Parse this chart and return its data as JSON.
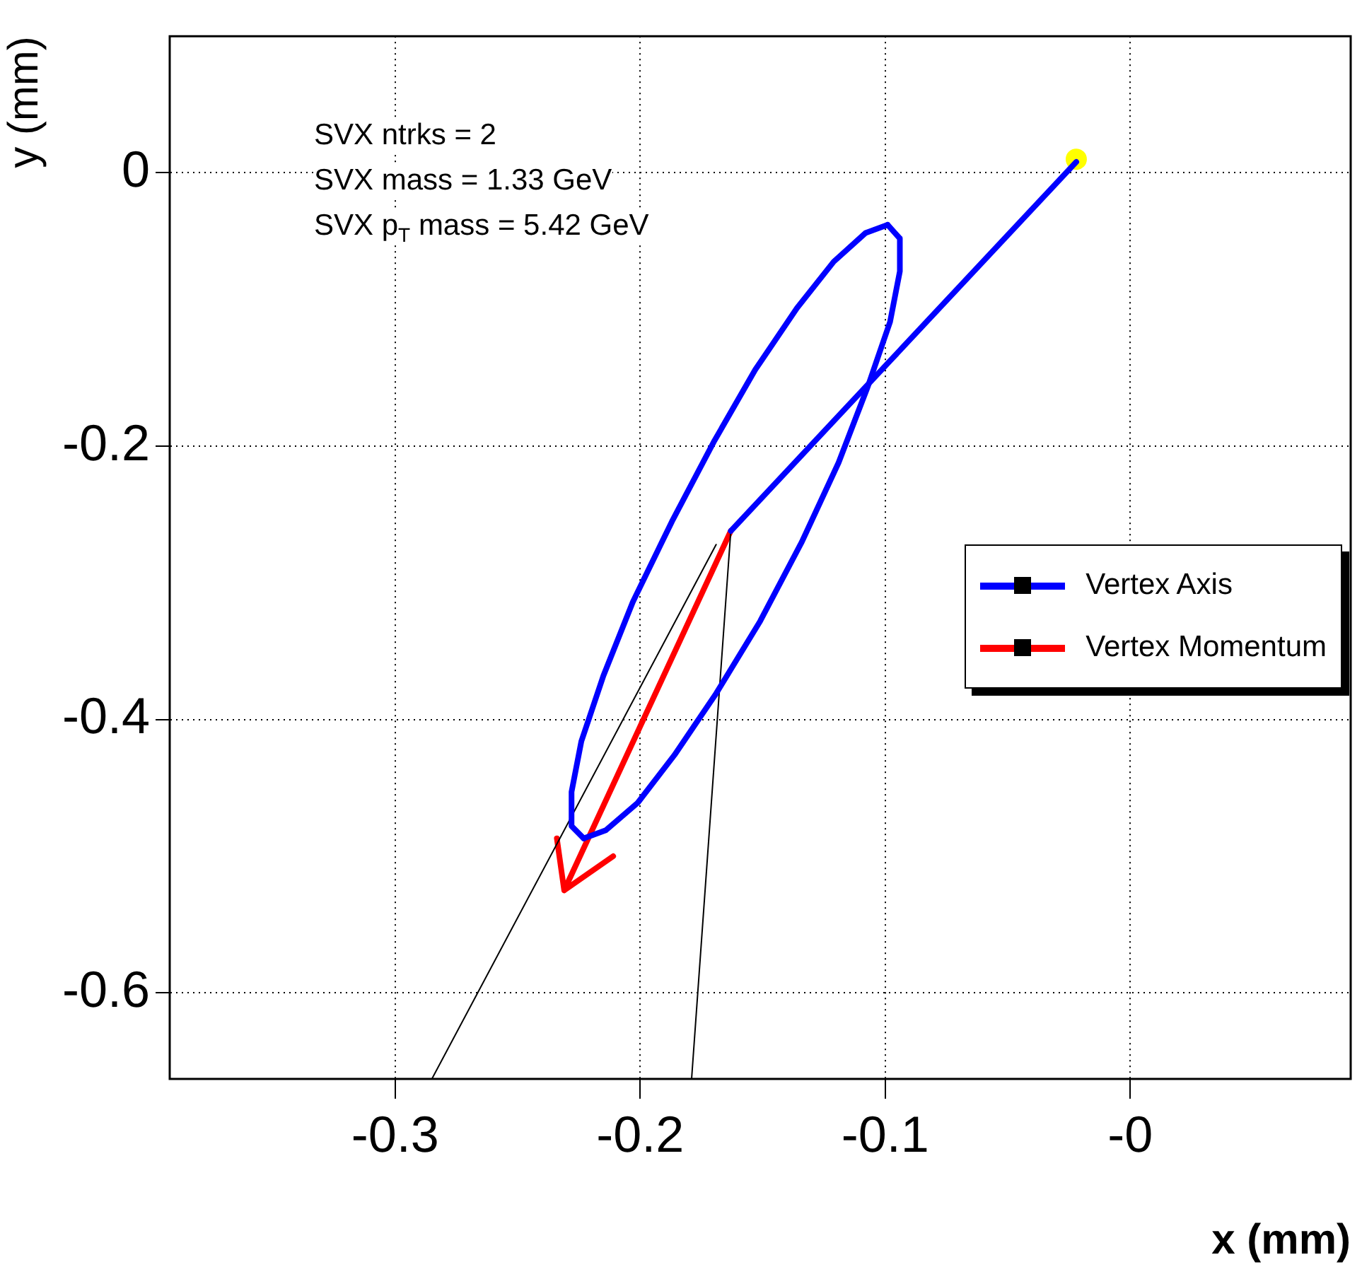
{
  "chart_data": {
    "type": "line",
    "xlabel": "x (mm)",
    "ylabel": "y (mm)",
    "xlim": [
      -0.392,
      0.09
    ],
    "xticks": [
      -0.3,
      -0.2,
      -0.1,
      {
        "value": 0,
        "label": "-0"
      }
    ],
    "ylim": [
      -0.663,
      0.1
    ],
    "yticks": [
      0,
      -0.2,
      -0.4,
      -0.6
    ],
    "grid": true,
    "legend": "right",
    "annotations": [
      "SVX ntrks = 2",
      "SVX mass = 1.33 GeV",
      "SVX p$_{T}$ mass = 5.42 GeV"
    ],
    "series": [
      {
        "name": "Vertex Axis",
        "type": "line",
        "color": "#0000ff",
        "x": [
          -0.022,
          -0.163
        ],
        "values": [
          0.008,
          -0.262
        ]
      },
      {
        "type": "line",
        "color": "#0000ff",
        "x": [
          -0.099,
          -0.094,
          -0.094,
          -0.098,
          -0.107,
          -0.119,
          -0.134,
          -0.151,
          -0.169,
          -0.186,
          -0.201,
          -0.214,
          -0.223
        ],
        "values": [
          -0.038,
          -0.048,
          -0.072,
          -0.109,
          -0.156,
          -0.212,
          -0.27,
          -0.328,
          -0.381,
          -0.426,
          -0.461,
          -0.481,
          -0.487
        ]
      },
      {
        "type": "line",
        "color": "#0000ff",
        "x": [
          -0.223,
          -0.228,
          -0.228,
          -0.224,
          -0.215,
          -0.203,
          -0.187,
          -0.17,
          -0.153,
          -0.136,
          -0.121,
          -0.108,
          -0.099
        ],
        "values": [
          -0.487,
          -0.478,
          -0.453,
          -0.416,
          -0.368,
          -0.314,
          -0.255,
          -0.197,
          -0.144,
          -0.099,
          -0.065,
          -0.044,
          -0.038
        ]
      },
      {
        "type": "line",
        "color": "#000000",
        "x": [
          -0.169,
          -0.285
        ],
        "values": [
          -0.272,
          -0.663
        ]
      },
      {
        "type": "line",
        "color": "#000000",
        "x": [
          -0.163,
          -0.179
        ],
        "values": [
          -0.262,
          -0.663
        ]
      },
      {
        "name": "Vertex Momentum",
        "type": "line",
        "color": "#ff0000",
        "x": [
          -0.163,
          -0.231,
          -0.234,
          -0.231,
          -0.211
        ],
        "values": [
          -0.262,
          -0.525,
          -0.487,
          -0.525,
          -0.5
        ]
      },
      {
        "type": "scatter",
        "color": "#ffff00",
        "x": [
          -0.022
        ],
        "values": [
          0.01
        ]
      }
    ]
  }
}
